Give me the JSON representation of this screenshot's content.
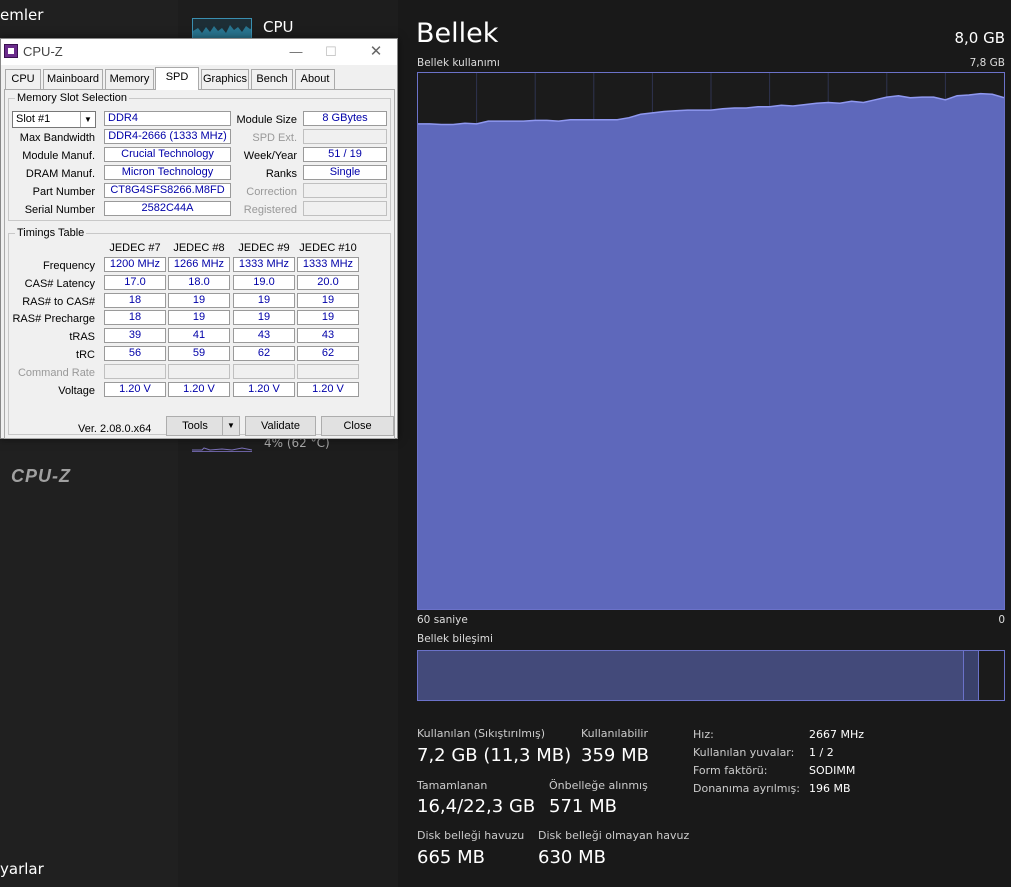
{
  "sidebar": {
    "top_label": "emler",
    "bottom_label": "yarlar"
  },
  "list": {
    "cpu_label": "CPU",
    "gpu_sub": "4% (62 °C)"
  },
  "memory": {
    "title": "Bellek",
    "total": "8,0 GB",
    "usage_label": "Bellek kullanımı",
    "usage_max": "7,8 GB",
    "axis_left": "60 saniye",
    "axis_right": "0",
    "composition_label": "Bellek bileşimi",
    "composition": {
      "in_use_fraction": 0.93,
      "modified_fraction": 0.027
    },
    "usage_history_gb": [
      7.06,
      7.06,
      7.05,
      7.05,
      7.07,
      7.06,
      7.1,
      7.1,
      7.1,
      7.1,
      7.11,
      7.11,
      7.1,
      7.12,
      7.12,
      7.12,
      7.12,
      7.12,
      7.15,
      7.2,
      7.22,
      7.24,
      7.25,
      7.26,
      7.26,
      7.26,
      7.28,
      7.29,
      7.29,
      7.31,
      7.31,
      7.33,
      7.32,
      7.34,
      7.36,
      7.37,
      7.36,
      7.39,
      7.37,
      7.41,
      7.45,
      7.47,
      7.44,
      7.45,
      7.45,
      7.41,
      7.47,
      7.48,
      7.5,
      7.49,
      7.44
    ],
    "stats": {
      "used_label": "Kullanılan (Sıkıştırılmış)",
      "used_value": "7,2 GB (11,3 MB)",
      "available_label": "Kullanılabilir",
      "available_value": "359 MB",
      "committed_label": "Tamamlanan",
      "committed_value": "16,4/22,3 GB",
      "cached_label": "Önbelleğe alınmış",
      "cached_value": "571 MB",
      "paged_label": "Disk belleği havuzu",
      "paged_value": "665 MB",
      "nonpaged_label": "Disk belleği olmayan havuz",
      "nonpaged_value": "630 MB"
    },
    "specs": {
      "speed_label": "Hız:",
      "speed_value": "2667 MHz",
      "slots_label": "Kullanılan yuvalar:",
      "slots_value": "1 / 2",
      "form_label": "Form faktörü:",
      "form_value": "SODIMM",
      "reserved_label": "Donanıma ayrılmış:",
      "reserved_value": "196 MB"
    }
  },
  "cpuz": {
    "title": "CPU-Z",
    "window_controls": {
      "minimize": "—",
      "maximize": "☐",
      "close": "✕"
    },
    "tabs": [
      "CPU",
      "Mainboard",
      "Memory",
      "SPD",
      "Graphics",
      "Bench",
      "About"
    ],
    "active_tab": "SPD",
    "slot_group_title": "Memory Slot Selection",
    "slot_value": "Slot #1",
    "slot_arrow": "▼",
    "memory_type": "DDR4",
    "module_size_label": "Module Size",
    "module_size_value": "8 GBytes",
    "max_bw_label": "Max Bandwidth",
    "max_bw_value": "DDR4-2666 (1333 MHz)",
    "spd_ext_label": "SPD Ext.",
    "manuf_label": "Module Manuf.",
    "manuf_value": "Crucial Technology",
    "week_label": "Week/Year",
    "week_value": "51 / 19",
    "dram_label": "DRAM Manuf.",
    "dram_value": "Micron Technology",
    "ranks_label": "Ranks",
    "ranks_value": "Single",
    "part_label": "Part Number",
    "part_value": "CT8G4SFS8266.M8FD",
    "correction_label": "Correction",
    "serial_label": "Serial Number",
    "serial_value": "2582C44A",
    "registered_label": "Registered",
    "timings_group_title": "Timings Table",
    "timing_columns": [
      "JEDEC #7",
      "JEDEC #8",
      "JEDEC #9",
      "JEDEC #10"
    ],
    "timing_rows": [
      {
        "label": "Frequency",
        "values": [
          "1200 MHz",
          "1266 MHz",
          "1333 MHz",
          "1333 MHz"
        ],
        "dim": false
      },
      {
        "label": "CAS# Latency",
        "values": [
          "17.0",
          "18.0",
          "19.0",
          "20.0"
        ],
        "dim": false
      },
      {
        "label": "RAS# to CAS#",
        "values": [
          "18",
          "19",
          "19",
          "19"
        ],
        "dim": false
      },
      {
        "label": "RAS# Precharge",
        "values": [
          "18",
          "19",
          "19",
          "19"
        ],
        "dim": false
      },
      {
        "label": "tRAS",
        "values": [
          "39",
          "41",
          "43",
          "43"
        ],
        "dim": false
      },
      {
        "label": "tRC",
        "values": [
          "56",
          "59",
          "62",
          "62"
        ],
        "dim": false
      },
      {
        "label": "Command Rate",
        "values": [
          "",
          "",
          "",
          ""
        ],
        "dim": true
      },
      {
        "label": "Voltage",
        "values": [
          "1.20 V",
          "1.20 V",
          "1.20 V",
          "1.20 V"
        ],
        "dim": false
      }
    ],
    "footer_logo": "CPU-Z",
    "version": "Ver. 2.08.0.x64",
    "tools_label": "Tools",
    "tools_arrow": "▼",
    "validate_label": "Validate",
    "close_label": "Close"
  }
}
